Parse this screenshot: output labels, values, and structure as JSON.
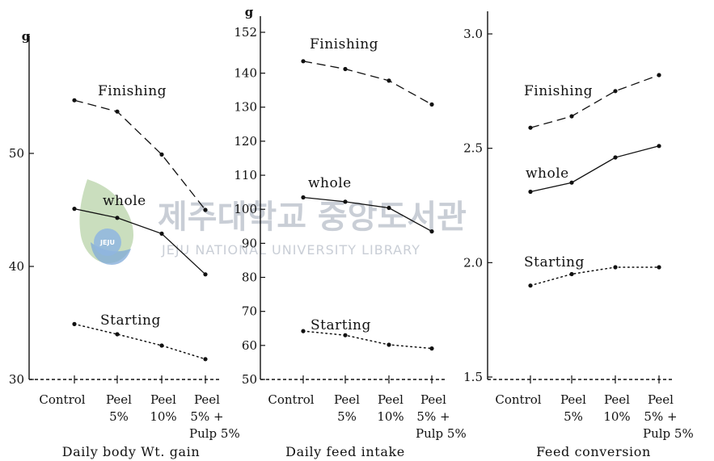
{
  "watermark": {
    "korean": "제주대학교 중앙도서관",
    "english": "JEJU NATIONAL UNIVERSITY LIBRARY",
    "seal": "JEJU"
  },
  "colors": {
    "ink": "#111111",
    "watermark": "#c9ced6"
  },
  "chart_data": [
    {
      "type": "line",
      "title": "",
      "caption": "Daily body Wt. gain",
      "unit": "g",
      "xlabel": "",
      "ylabel": "",
      "ylim": [
        30,
        60
      ],
      "yticks": [
        30,
        40,
        50
      ],
      "ytick_labels": [
        "30",
        "40",
        "50"
      ],
      "categories": [
        [
          "Control"
        ],
        [
          "Peel",
          "5%"
        ],
        [
          "Peel",
          "10%"
        ],
        [
          "Peel",
          "5% +",
          "Pulp 5%"
        ]
      ],
      "series": [
        {
          "name": "Finishing",
          "style": "dashed",
          "values": [
            54.7,
            53.7,
            49.9,
            45.0
          ]
        },
        {
          "name": "whole",
          "style": "solid",
          "values": [
            45.1,
            44.3,
            42.9,
            39.3
          ]
        },
        {
          "name": "Starting",
          "style": "dotted",
          "values": [
            34.9,
            34.0,
            33.0,
            31.8
          ]
        }
      ]
    },
    {
      "type": "line",
      "title": "",
      "caption": "Daily feed intake",
      "unit": "g",
      "xlabel": "",
      "ylabel": "",
      "ylim": [
        50,
        155
      ],
      "yticks": [
        50,
        60,
        70,
        80,
        90,
        100,
        110,
        120,
        130,
        140,
        152
      ],
      "ytick_labels": [
        "50",
        "60",
        "70",
        "80",
        "90",
        "100",
        "110",
        "120",
        "130",
        "140",
        "152"
      ],
      "categories": [
        [
          "Control"
        ],
        [
          "Peel",
          "5%"
        ],
        [
          "Peel",
          "10%"
        ],
        [
          "Peel",
          "5% +",
          "Pulp 5%"
        ]
      ],
      "series": [
        {
          "name": "Finishing",
          "style": "dashed",
          "values": [
            143.5,
            141.2,
            137.8,
            130.8
          ]
        },
        {
          "name": "whole",
          "style": "solid",
          "values": [
            103.5,
            102.2,
            100.4,
            93.5
          ]
        },
        {
          "name": "Starting",
          "style": "dotted",
          "values": [
            64.2,
            63.0,
            60.2,
            59.1
          ]
        }
      ]
    },
    {
      "type": "line",
      "title": "",
      "caption": "Feed conversion",
      "unit": "",
      "xlabel": "",
      "ylabel": "",
      "ylim": [
        1.5,
        3.1
      ],
      "yticks": [
        1.5,
        2.0,
        2.5,
        3.0
      ],
      "ytick_labels": [
        "1.5",
        "2.0",
        "2.5",
        "3.0"
      ],
      "categories": [
        [
          "Control"
        ],
        [
          "Peel",
          "5%"
        ],
        [
          "Peel",
          "10%"
        ],
        [
          "Peel",
          "5% +",
          "Pulp 5%"
        ]
      ],
      "series": [
        {
          "name": "Finishing",
          "style": "dashed",
          "values": [
            2.59,
            2.64,
            2.75,
            2.82
          ]
        },
        {
          "name": "whole",
          "style": "solid",
          "values": [
            2.31,
            2.35,
            2.46,
            2.51
          ]
        },
        {
          "name": "Starting",
          "style": "dotted",
          "values": [
            1.9,
            1.95,
            1.98,
            1.98
          ]
        }
      ]
    }
  ]
}
